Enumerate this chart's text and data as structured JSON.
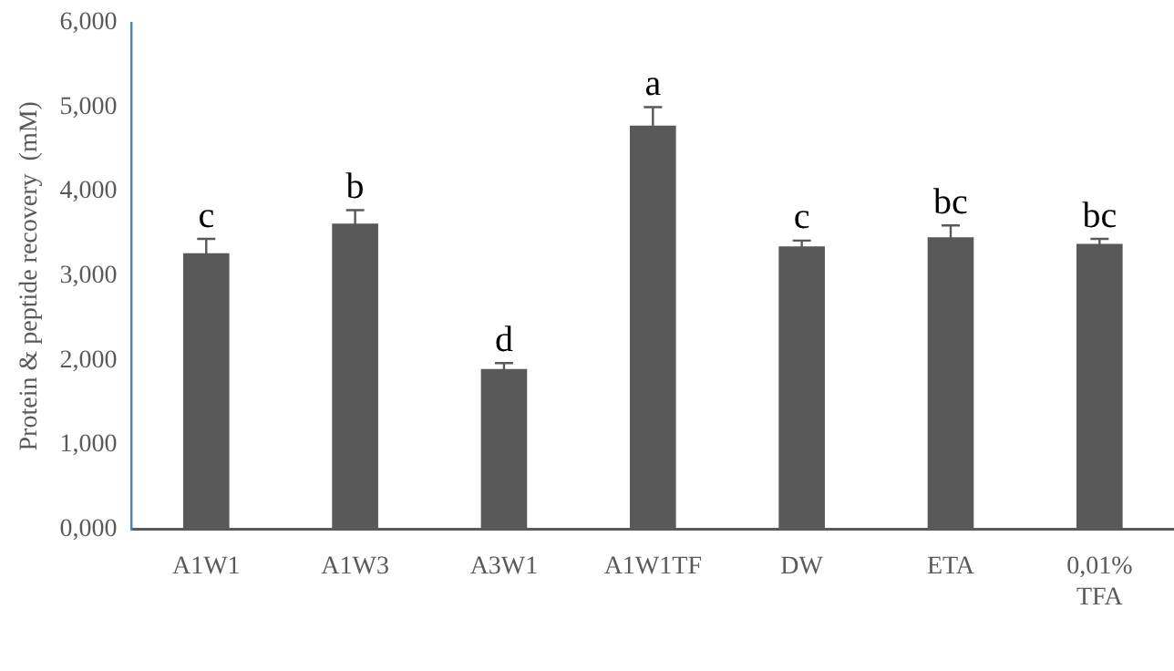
{
  "chart_data": {
    "type": "bar",
    "ylabel": "Protein & peptide recovery  (mM)",
    "categories": [
      "A1W1",
      "A1W3",
      "A3W1",
      "A1W1TF",
      "DW",
      "ETA",
      "0,01% TFA"
    ],
    "values": [
      3.27,
      3.62,
      1.9,
      4.78,
      3.35,
      3.46,
      3.38
    ],
    "errors": [
      0.17,
      0.16,
      0.07,
      0.22,
      0.07,
      0.14,
      0.06
    ],
    "color": "#595959",
    "ylim": [
      0,
      6
    ],
    "yticks": [
      {
        "value": 0,
        "label": "0,000"
      },
      {
        "value": 1,
        "label": "1,000"
      },
      {
        "value": 2,
        "label": "2,000"
      },
      {
        "value": 3,
        "label": "3,000"
      },
      {
        "value": 4,
        "label": "4,000"
      },
      {
        "value": 5,
        "label": "5,000"
      },
      {
        "value": 6,
        "label": "6,000"
      }
    ],
    "annotations": [
      {
        "text": "c",
        "x": "A1W1",
        "y": 3.44
      },
      {
        "text": "b",
        "x": "A1W3",
        "y": 3.78
      },
      {
        "text": "d",
        "x": "A3W1",
        "y": 1.97
      },
      {
        "text": "a",
        "x": "A1W1TF",
        "y": 5.0
      },
      {
        "text": "c",
        "x": "DW",
        "y": 3.42
      },
      {
        "text": "bc",
        "x": "ETA",
        "y": 3.6
      },
      {
        "text": "bc",
        "x": "0,01% TFA",
        "y": 3.44
      }
    ],
    "grid": false,
    "legend": false
  }
}
